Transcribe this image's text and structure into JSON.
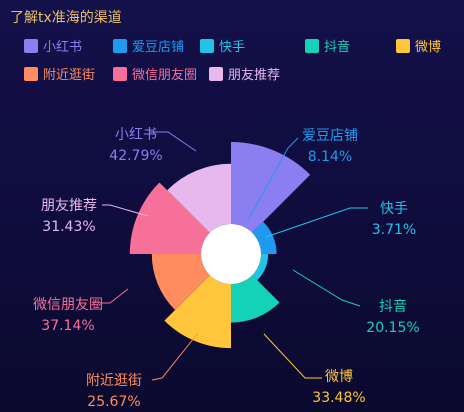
{
  "title": "了解tx准海的渠道",
  "chart_data": {
    "type": "nightingale-rose",
    "title": "了解tx准海的渠道",
    "legend_placement": "top",
    "series": [
      {
        "name": "小红书",
        "value": 42.79,
        "label": "42.79%",
        "color": "#8a7ef0"
      },
      {
        "name": "爱豆店铺",
        "value": 8.14,
        "label": "8.14%",
        "color": "#1e9bf0"
      },
      {
        "name": "快手",
        "value": 3.71,
        "label": "3.71%",
        "color": "#22c4e6"
      },
      {
        "name": "抖音",
        "value": 20.15,
        "label": "20.15%",
        "color": "#14d2b8"
      },
      {
        "name": "微博",
        "value": 33.48,
        "label": "33.48%",
        "color": "#ffc63b"
      },
      {
        "name": "附近逛街",
        "value": 25.67,
        "label": "25.67%",
        "color": "#ff8c5e"
      },
      {
        "name": "微信朋友圈",
        "value": 37.14,
        "label": "37.14%",
        "color": "#f7709a"
      },
      {
        "name": "朋友推荐",
        "value": 31.43,
        "label": "31.43%",
        "color": "#e6b8ee"
      }
    ]
  }
}
